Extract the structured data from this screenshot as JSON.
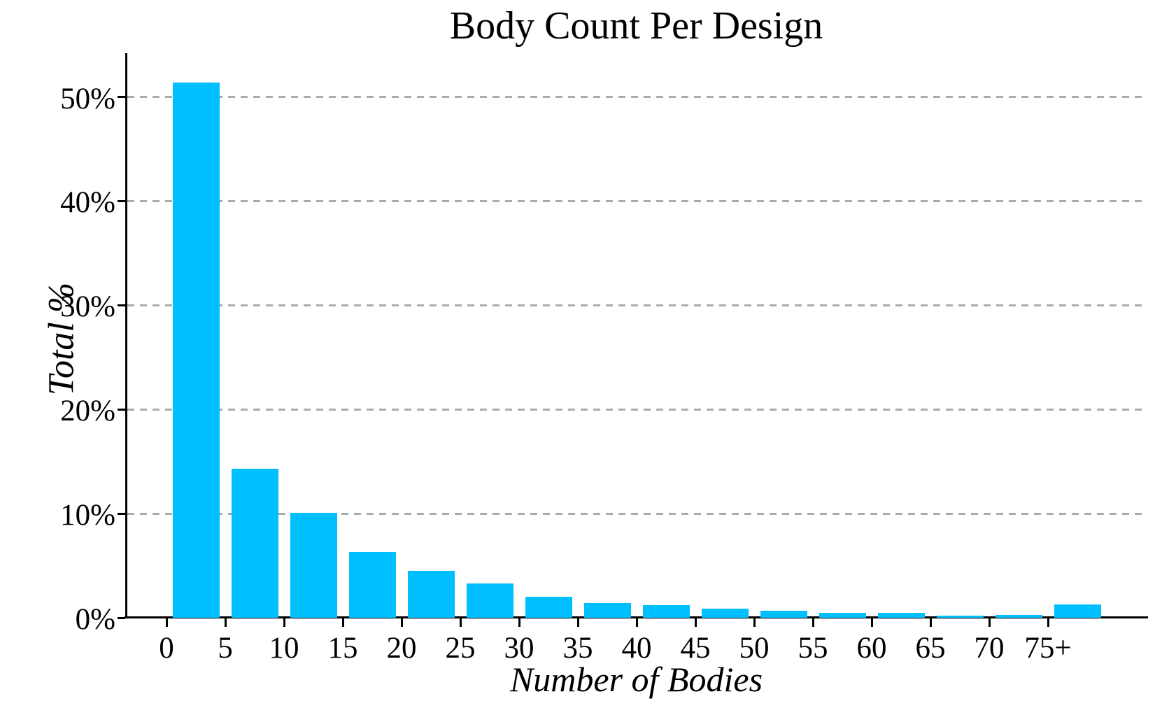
{
  "chart_data": {
    "type": "bar",
    "title": "Body Count Per Design",
    "xlabel": "Number of Bodies",
    "ylabel": "Total %",
    "categories": [
      "0",
      "5",
      "10",
      "15",
      "20",
      "25",
      "30",
      "35",
      "40",
      "45",
      "50",
      "55",
      "60",
      "65",
      "70",
      "75+"
    ],
    "values": [
      51.4,
      14.3,
      10.1,
      6.3,
      4.5,
      3.3,
      2.0,
      1.4,
      1.2,
      0.85,
      0.7,
      0.5,
      0.45,
      0.2,
      0.25,
      1.3
    ],
    "yticks": [
      0,
      10,
      20,
      30,
      40,
      50
    ],
    "ytick_labels": [
      "0%",
      "10%",
      "20%",
      "30%",
      "40%",
      "50%"
    ],
    "ylim": [
      0,
      54.2
    ],
    "bar_color": "#00BFFF",
    "gridline_color": "#ABABAB",
    "axis_color": "#000000",
    "grid": "dashed horizontal",
    "legend": "none"
  }
}
